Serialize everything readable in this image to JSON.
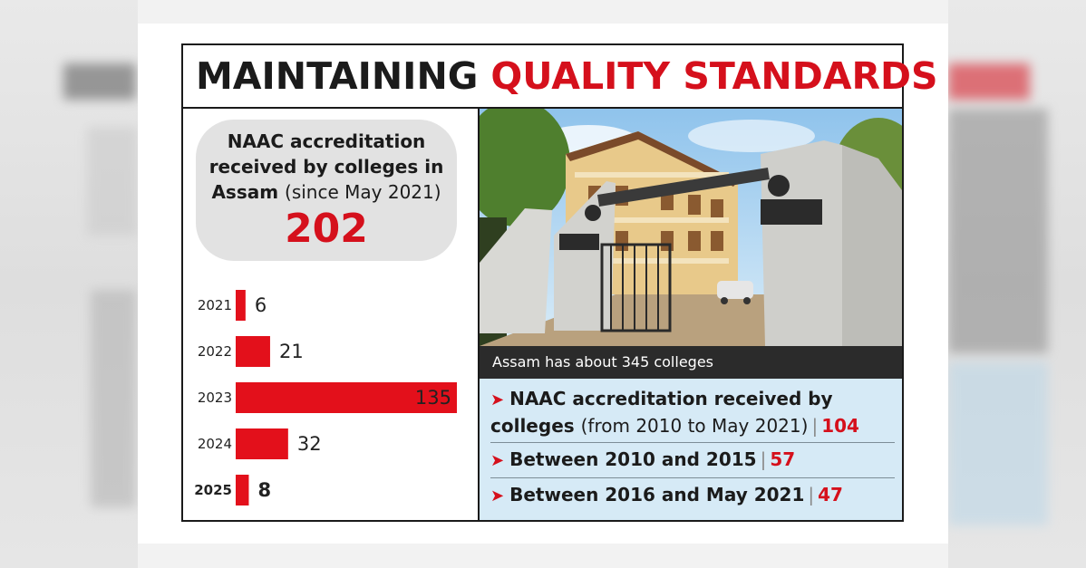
{
  "headline": {
    "part1": "MAINTAINING",
    "part2": "QUALITY STANDARDS"
  },
  "summary": {
    "line1": "NAAC accreditation",
    "line2": "received by colleges in",
    "line3_bold": "Assam",
    "line3_light": "(since May 2021)",
    "total": "202"
  },
  "photo": {
    "caption": "Assam has about 345 colleges"
  },
  "facts": [
    {
      "line1": "NAAC accreditation received by",
      "bold2": "colleges",
      "light2": "(from 2010 to May 2021)",
      "sep": "|",
      "value": "104"
    },
    {
      "label": "Between 2010 and 2015",
      "sep": "|",
      "value": "57"
    },
    {
      "label": "Between 2016 and May 2021",
      "sep": "|",
      "value": "47"
    }
  ],
  "chart_data": {
    "type": "bar",
    "orientation": "horizontal",
    "categories": [
      "2021",
      "2022",
      "2023",
      "2024",
      "2025"
    ],
    "values": [
      6,
      21,
      135,
      32,
      8
    ],
    "bold_categories": [
      "2025"
    ],
    "bar_color": "#e3101b",
    "xlim": [
      0,
      135
    ]
  },
  "colors": {
    "accent": "#d5101c",
    "facts_bg": "#d6eaf6",
    "summary_bg": "#e2e2e2"
  }
}
